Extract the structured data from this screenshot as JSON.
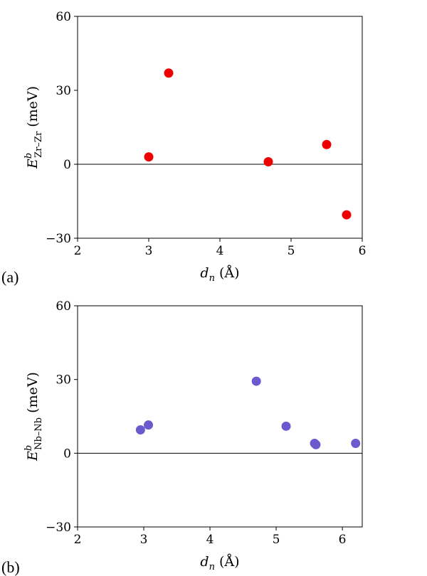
{
  "chart_data": [
    {
      "type": "scatter",
      "panel_label": "(a)",
      "xlabel": "d_n (Å)",
      "ylabel": "E^b_Zr–Zr (meV)",
      "xlim": [
        2,
        6
      ],
      "ylim": [
        -30,
        60
      ],
      "xticks": [
        "2",
        "3",
        "4",
        "5",
        "6"
      ],
      "yticks": [
        "−30",
        "0",
        "30",
        "60"
      ],
      "zero_line": true,
      "grid": false,
      "marker_color": "#ee0000",
      "series": [
        {
          "x": [
            3.0,
            3.28,
            4.68,
            5.5,
            5.78
          ],
          "y": [
            3,
            37,
            1,
            8,
            -20.5
          ]
        }
      ]
    },
    {
      "type": "scatter",
      "panel_label": "(b)",
      "xlabel": "d_n (Å)",
      "ylabel": "E^b_Nb–Nb (meV)",
      "xlim": [
        2,
        6.3
      ],
      "ylim": [
        -30,
        60
      ],
      "xticks": [
        "2",
        "3",
        "4",
        "5",
        "6"
      ],
      "yticks": [
        "−30",
        "0",
        "30",
        "60"
      ],
      "zero_line": true,
      "grid": false,
      "marker_color": "#6a5acd",
      "series": [
        {
          "x": [
            2.95,
            3.07,
            4.7,
            5.15,
            5.58,
            5.6,
            6.2
          ],
          "y": [
            9.5,
            11.5,
            29.3,
            11,
            4,
            3.5,
            4
          ]
        }
      ]
    }
  ]
}
